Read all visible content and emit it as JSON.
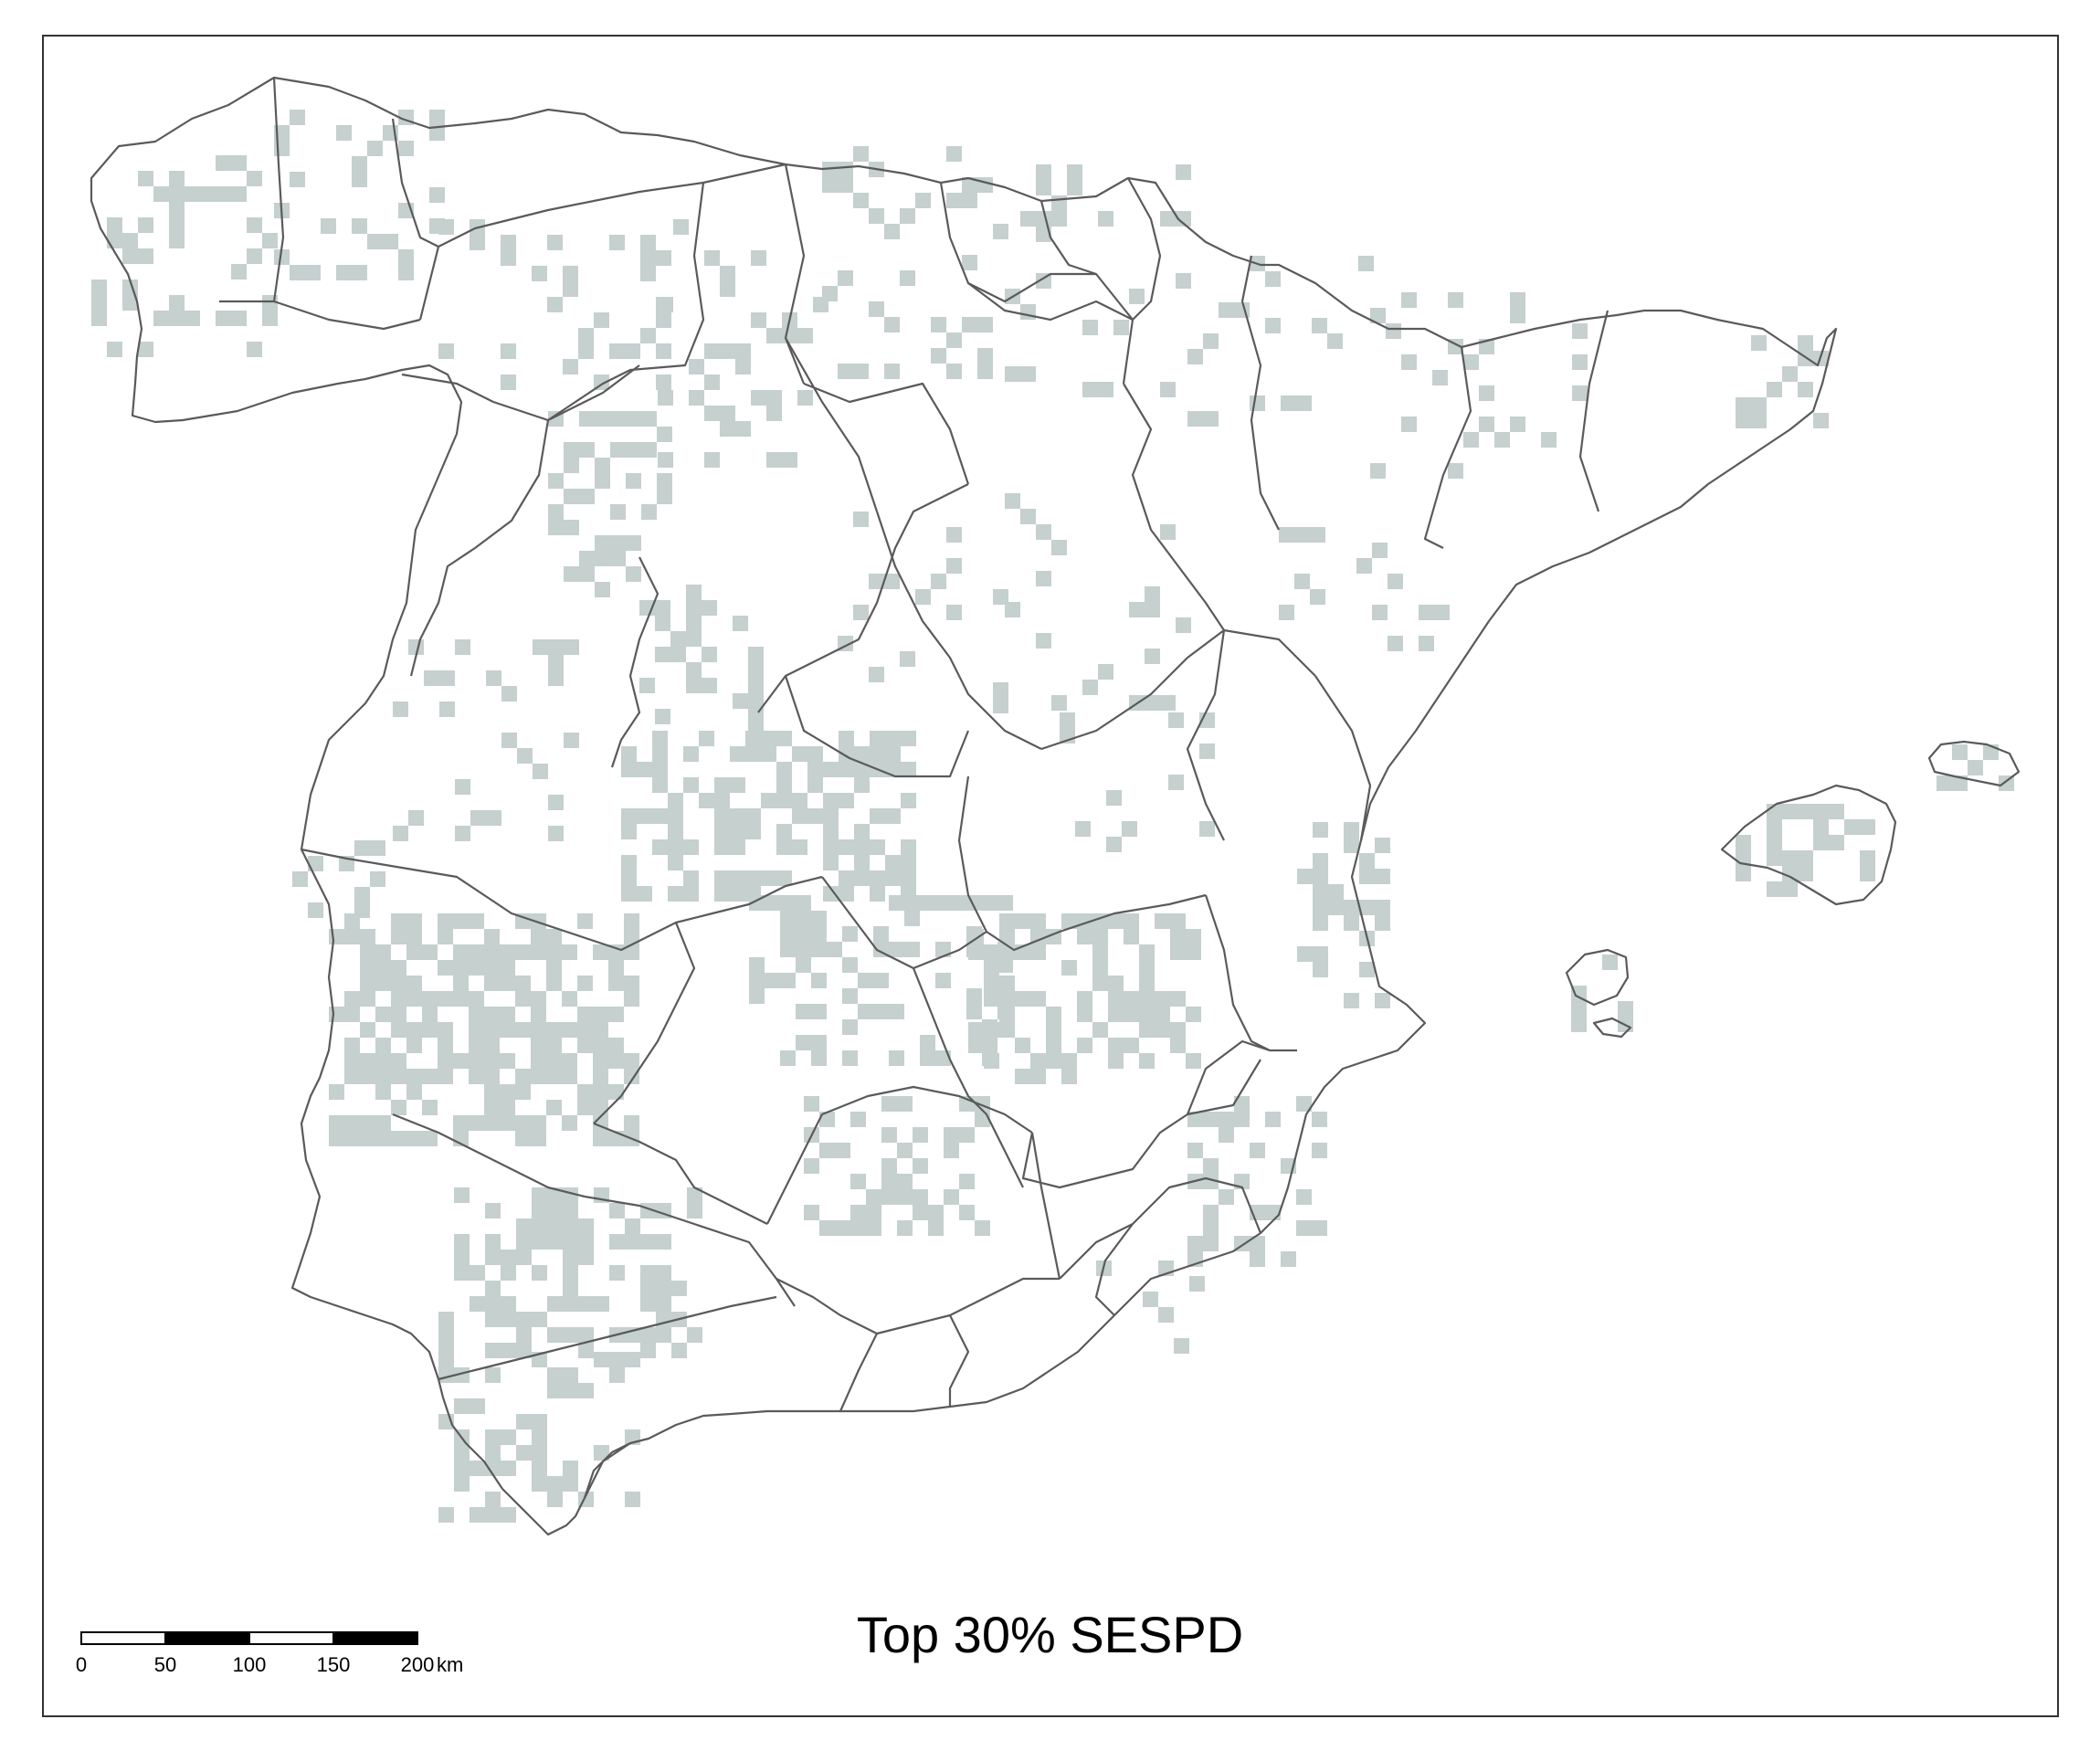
{
  "map": {
    "title": "Top 30% SESPD",
    "fill_color": "#c5d0cf",
    "boundary_color": "#5a5a5a",
    "frame_color": "#333333"
  },
  "scale_bar": {
    "ticks": [
      "0",
      "50",
      "100",
      "150",
      "200"
    ],
    "unit": "km"
  }
}
